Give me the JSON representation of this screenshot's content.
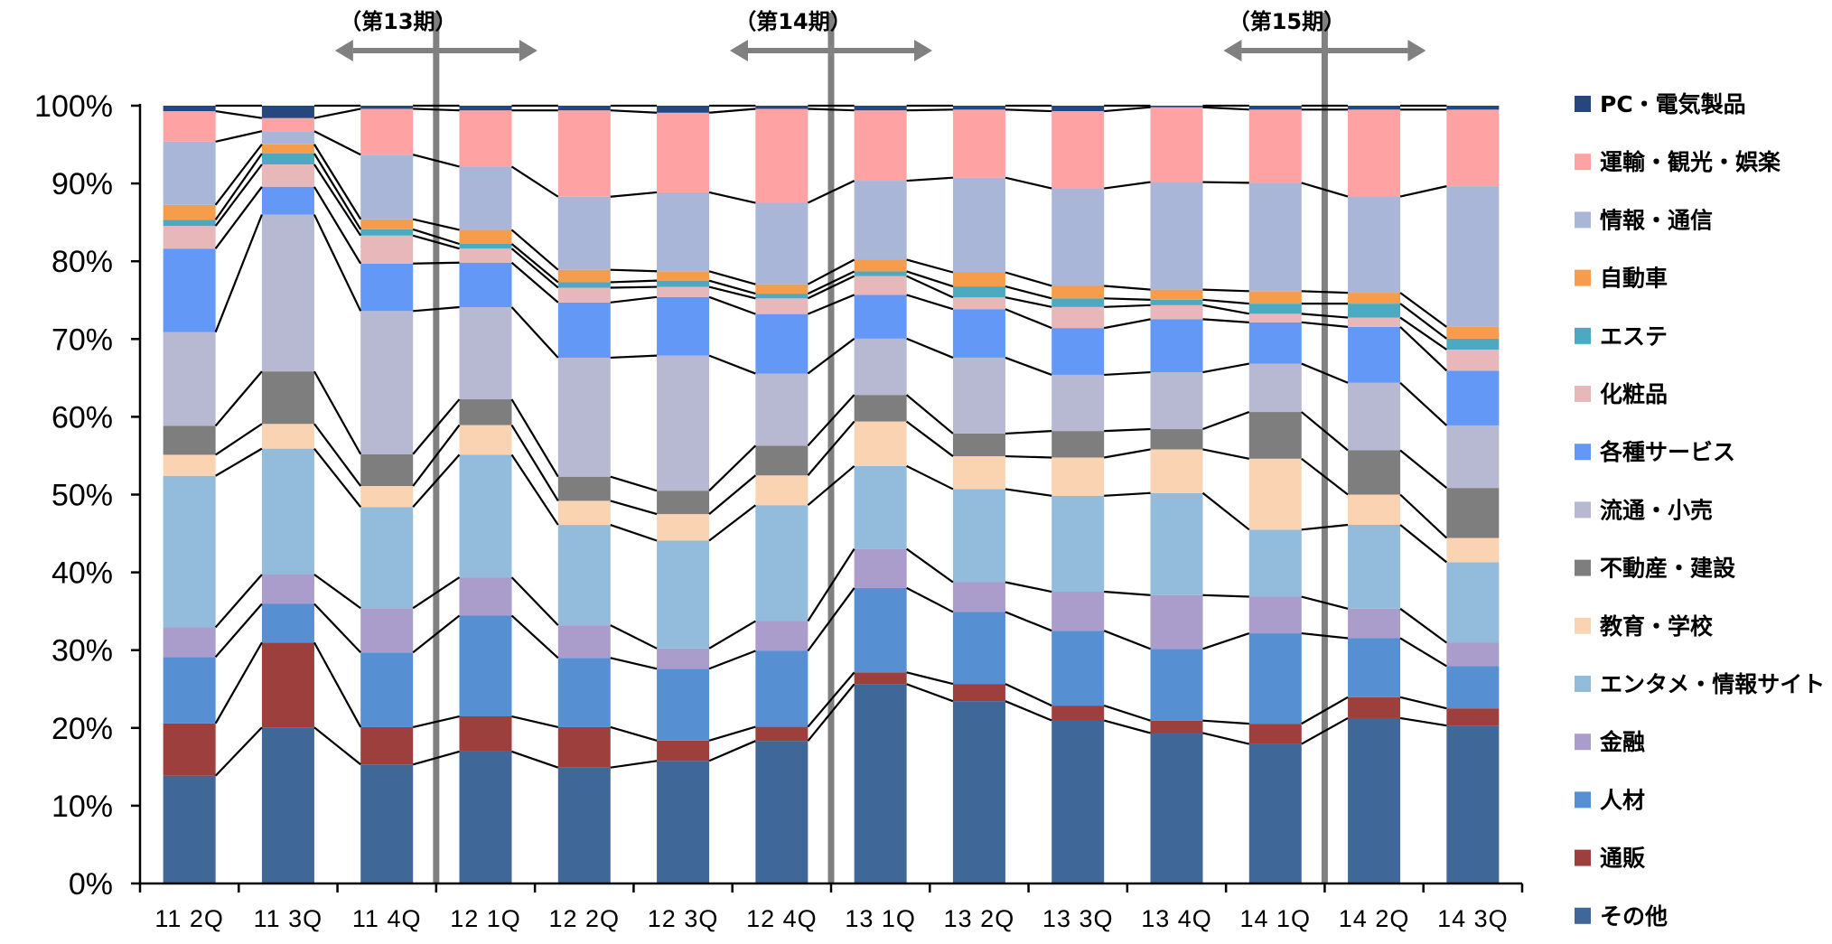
{
  "chart_data": {
    "type": "bar",
    "stacked": true,
    "percent_stacked": true,
    "title": "",
    "xlabel": "",
    "ylabel": "",
    "ylim": [
      0,
      100
    ],
    "yticks": [
      "0%",
      "10%",
      "20%",
      "30%",
      "40%",
      "50%",
      "60%",
      "70%",
      "80%",
      "90%",
      "100%"
    ],
    "categories": [
      "11 2Q",
      "11 3Q",
      "11 4Q",
      "12 1Q",
      "12 2Q",
      "12 3Q",
      "12 4Q",
      "13 1Q",
      "13 2Q",
      "13 3Q",
      "13 4Q",
      "14 1Q",
      "14 2Q",
      "14 3Q"
    ],
    "legend_position": "right",
    "grid": false,
    "periods": [
      {
        "label": "（第13期）",
        "divider_after_category": "11 4Q"
      },
      {
        "label": "（第14期）",
        "divider_after_category": "12 4Q"
      },
      {
        "label": "（第15期）",
        "divider_after_category": "14 1Q"
      }
    ],
    "series": [
      {
        "name": "その他",
        "color": "#3f6899",
        "values": [
          13.8,
          20.2,
          15.3,
          16.9,
          14.9,
          15.7,
          18.2,
          25.5,
          23.3,
          20.9,
          19.3,
          17.9,
          21.3,
          20.2
        ]
      },
      {
        "name": "通販",
        "color": "#9d3f3d",
        "values": [
          6.7,
          11.0,
          4.8,
          4.5,
          5.2,
          2.6,
          1.8,
          1.5,
          2.2,
          1.9,
          1.6,
          2.6,
          2.7,
          2.2
        ]
      },
      {
        "name": "人材",
        "color": "#578fd3",
        "values": [
          8.5,
          5.0,
          9.6,
          12.9,
          8.9,
          9.2,
          9.7,
          10.8,
          9.2,
          9.6,
          9.2,
          11.6,
          7.6,
          5.4
        ]
      },
      {
        "name": "金融",
        "color": "#aa9ccb",
        "values": [
          3.8,
          3.8,
          5.7,
          4.9,
          4.2,
          2.6,
          3.8,
          5.0,
          3.8,
          5.0,
          6.9,
          4.7,
          3.8,
          3.0
        ]
      },
      {
        "name": "エンタメ・情報サイト",
        "color": "#93bbdc",
        "values": [
          19.4,
          16.3,
          13.0,
          15.7,
          12.9,
          13.8,
          14.8,
          10.6,
          11.9,
          12.3,
          13.1,
          8.6,
          10.8,
          10.3
        ]
      },
      {
        "name": "教育・学校",
        "color": "#fad4b2",
        "values": [
          2.7,
          3.2,
          2.7,
          3.8,
          3.1,
          3.4,
          3.8,
          5.7,
          4.2,
          4.9,
          5.6,
          9.1,
          3.9,
          3.1
        ]
      },
      {
        "name": "不動産・建設",
        "color": "#7e7e7e",
        "values": [
          3.7,
          6.8,
          4.1,
          3.3,
          3.1,
          3.0,
          3.8,
          3.4,
          2.9,
          3.4,
          2.6,
          6.0,
          5.7,
          6.4
        ]
      },
      {
        "name": "流通・小売",
        "color": "#b7b8d2",
        "values": [
          12.0,
          20.3,
          18.4,
          11.8,
          15.3,
          17.3,
          9.2,
          7.2,
          9.7,
          7.2,
          7.3,
          6.2,
          8.7,
          8.0
        ]
      },
      {
        "name": "各種サービス",
        "color": "#6398f6",
        "values": [
          10.7,
          3.6,
          6.1,
          5.7,
          7.1,
          7.5,
          7.6,
          5.6,
          6.2,
          6.0,
          6.8,
          5.3,
          7.2,
          7.0
        ]
      },
      {
        "name": "化粧品",
        "color": "#e7b7b9",
        "values": [
          2.9,
          2.9,
          3.6,
          1.8,
          1.9,
          1.3,
          2.0,
          2.4,
          1.5,
          2.7,
          1.8,
          1.1,
          1.2,
          2.7
        ]
      },
      {
        "name": "エステ",
        "color": "#4ba9c1",
        "values": [
          0.8,
          1.4,
          0.8,
          0.6,
          0.7,
          0.8,
          0.6,
          0.6,
          1.4,
          1.1,
          0.7,
          1.3,
          1.8,
          1.4
        ]
      },
      {
        "name": "自動車",
        "color": "#f59d4c",
        "values": [
          1.9,
          1.2,
          1.3,
          1.8,
          1.6,
          1.2,
          1.2,
          1.5,
          1.8,
          1.6,
          1.3,
          1.6,
          1.4,
          1.5
        ]
      },
      {
        "name": "情報・通信",
        "color": "#a9b6d7",
        "values": [
          8.1,
          1.7,
          8.3,
          8.1,
          9.4,
          10.1,
          10.4,
          10.1,
          12.1,
          12.5,
          13.8,
          13.9,
          12.4,
          18.0
        ]
      },
      {
        "name": "運輸・観光・娯楽",
        "color": "#fea2a4",
        "values": [
          3.9,
          1.7,
          5.9,
          7.2,
          11.1,
          10.2,
          12.0,
          9.0,
          8.7,
          9.9,
          9.6,
          9.4,
          11.2,
          9.8
        ]
      },
      {
        "name": "PC・電気製品",
        "color": "#25467f",
        "values": [
          0.7,
          1.6,
          0.4,
          0.6,
          0.6,
          0.9,
          0.4,
          0.6,
          0.5,
          0.7,
          0.2,
          0.5,
          0.5,
          0.5
        ]
      }
    ]
  }
}
